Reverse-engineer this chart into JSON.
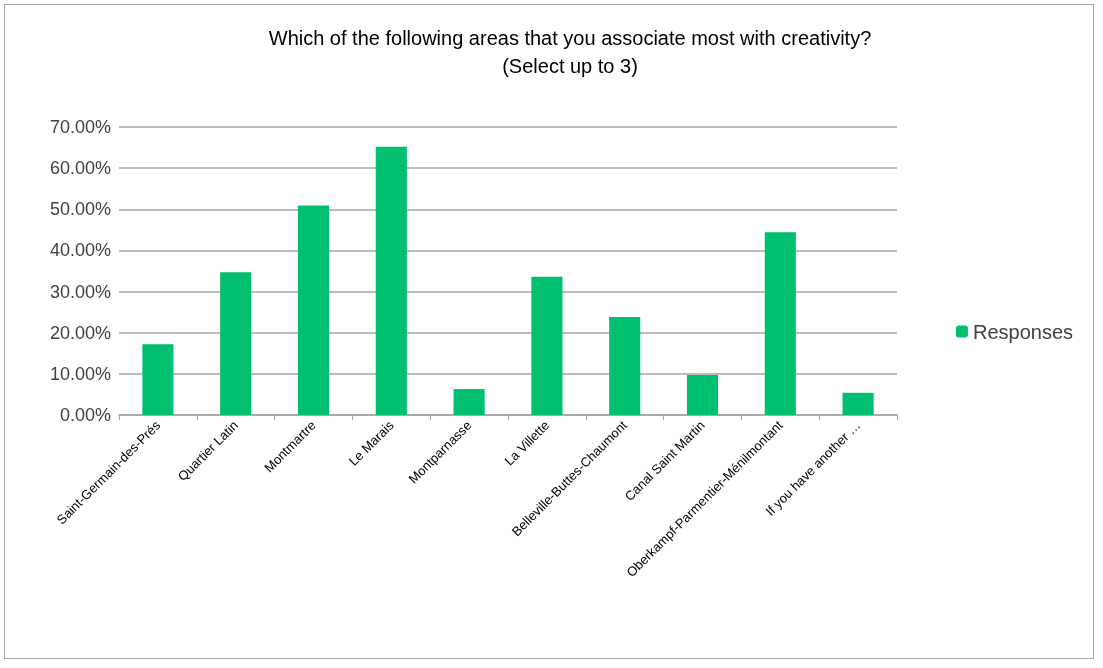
{
  "chart_data": {
    "type": "bar",
    "title": "Which of the following areas that you associate most with creativity?\n(Select up to 3)",
    "categories": [
      "Saint-Germain-des-Prés",
      "Quartier Latin",
      "Montmartre",
      "Le Marais",
      "Montparnasse",
      "La Villette",
      "Belleville-Buttes-Chaumont",
      "Canal Saint Martin",
      "Oberkampf-Parmentier-Ménilmontant",
      "If you have another …"
    ],
    "series": [
      {
        "name": "Responses",
        "color": "#00bf6f",
        "values": [
          17.2,
          34.7,
          50.9,
          65.2,
          6.3,
          33.6,
          23.8,
          9.7,
          44.4,
          5.4
        ]
      }
    ],
    "ylim": [
      0,
      70
    ],
    "yticks": [
      {
        "value": 0,
        "label": "0.00%"
      },
      {
        "value": 10,
        "label": "10.00%"
      },
      {
        "value": 20,
        "label": "20.00%"
      },
      {
        "value": 30,
        "label": "30.00%"
      },
      {
        "value": 40,
        "label": "40.00%"
      },
      {
        "value": 50,
        "label": "50.00%"
      },
      {
        "value": 60,
        "label": "60.00%"
      },
      {
        "value": 70,
        "label": "70.00%"
      }
    ],
    "grid": "y",
    "legend": "right"
  }
}
